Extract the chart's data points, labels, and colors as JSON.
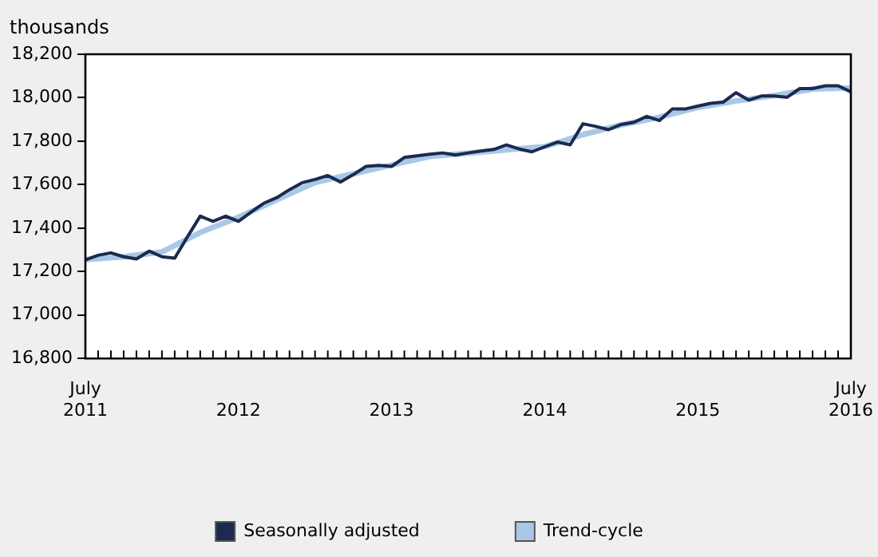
{
  "chart_data": {
    "type": "line",
    "ylabel": "thousands",
    "x": [
      "2011-07",
      "2011-08",
      "2011-09",
      "2011-10",
      "2011-11",
      "2011-12",
      "2012-01",
      "2012-02",
      "2012-03",
      "2012-04",
      "2012-05",
      "2012-06",
      "2012-07",
      "2012-08",
      "2012-09",
      "2012-10",
      "2012-11",
      "2012-12",
      "2013-01",
      "2013-02",
      "2013-03",
      "2013-04",
      "2013-05",
      "2013-06",
      "2013-07",
      "2013-08",
      "2013-09",
      "2013-10",
      "2013-11",
      "2013-12",
      "2014-01",
      "2014-02",
      "2014-03",
      "2014-04",
      "2014-05",
      "2014-06",
      "2014-07",
      "2014-08",
      "2014-09",
      "2014-10",
      "2014-11",
      "2014-12",
      "2015-01",
      "2015-02",
      "2015-03",
      "2015-04",
      "2015-05",
      "2015-06",
      "2015-07",
      "2015-08",
      "2015-09",
      "2015-10",
      "2015-11",
      "2015-12",
      "2016-01",
      "2016-02",
      "2016-03",
      "2016-04",
      "2016-05",
      "2016-06",
      "2016-07"
    ],
    "series": [
      {
        "name": "Seasonally adjusted",
        "color": "#1b2a4e",
        "values": [
          17254,
          17275,
          17286,
          17268,
          17258,
          17294,
          17268,
          17262,
          17360,
          17455,
          17431,
          17455,
          17431,
          17474,
          17515,
          17540,
          17577,
          17609,
          17624,
          17642,
          17612,
          17646,
          17684,
          17689,
          17684,
          17725,
          17733,
          17740,
          17746,
          17736,
          17746,
          17755,
          17762,
          17783,
          17764,
          17751,
          17774,
          17796,
          17783,
          17880,
          17868,
          17853,
          17877,
          17887,
          17914,
          17895,
          17948,
          17948,
          17961,
          17974,
          17980,
          18023,
          17989,
          18008,
          18008,
          18002,
          18042,
          18042,
          18055,
          18055,
          18027
        ]
      },
      {
        "name": "Trend-cycle",
        "color": "#a9c8e8",
        "x": [
          "2011-07",
          "2011-10",
          "2012-01",
          "2012-04",
          "2012-07",
          "2012-10",
          "2013-01",
          "2013-04",
          "2013-07",
          "2013-10",
          "2014-01",
          "2014-04",
          "2014-07",
          "2014-10",
          "2015-01",
          "2015-04",
          "2015-07",
          "2015-10",
          "2016-01",
          "2016-04",
          "2016-07"
        ],
        "values": [
          17255,
          17268,
          17290,
          17380,
          17450,
          17530,
          17610,
          17650,
          17690,
          17730,
          17745,
          17760,
          17775,
          17830,
          17875,
          17910,
          17955,
          17985,
          18010,
          18040,
          18045
        ]
      }
    ],
    "xlim": [
      "2011-07",
      "2016-07"
    ],
    "xticks": [
      {
        "value": "2011-07",
        "label": "July 2011"
      },
      {
        "value": "2012-01",
        "label": null
      },
      {
        "value": "2012-07",
        "label": "2012"
      },
      {
        "value": "2013-01",
        "label": null
      },
      {
        "value": "2013-07",
        "label": "2013"
      },
      {
        "value": "2014-01",
        "label": null
      },
      {
        "value": "2014-07",
        "label": "2014"
      },
      {
        "value": "2015-01",
        "label": null
      },
      {
        "value": "2015-07",
        "label": "2015"
      },
      {
        "value": "2016-01",
        "label": null
      },
      {
        "value": "2016-07",
        "label": "July 2016"
      }
    ],
    "ylim": [
      16800,
      18200
    ],
    "yticks": [
      {
        "value": 16800,
        "label": "16,800"
      },
      {
        "value": 17000,
        "label": "17,000"
      },
      {
        "value": 17200,
        "label": "17,200"
      },
      {
        "value": 17400,
        "label": "17,400"
      },
      {
        "value": 17600,
        "label": "17,600"
      },
      {
        "value": 17800,
        "label": "17,800"
      },
      {
        "value": 18000,
        "label": "18,000"
      },
      {
        "value": 18200,
        "label": "18,200"
      }
    ],
    "legend": "bottom",
    "marker": "none",
    "line_style": "solid"
  }
}
